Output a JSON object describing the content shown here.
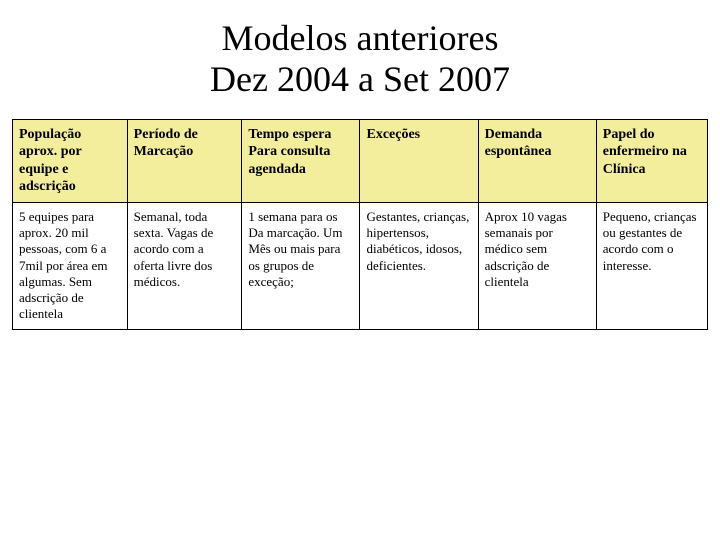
{
  "title_line1": "Modelos anteriores",
  "title_line2": "Dez 2004 a Set 2007",
  "table": {
    "header_bg": "#f2ee9c",
    "border_color": "#000000",
    "columns": [
      "População aprox. por equipe e adscrição",
      "Período de Marcação",
      "Tempo espera Para consulta agendada",
      "Exceções",
      "Demanda espontânea",
      "Papel do enfermeiro na Clínica"
    ],
    "rows": [
      [
        "5 equipes para aprox. 20 mil pessoas, com 6 a 7mil por área em algumas. Sem adscrição de clientela",
        "Semanal, toda sexta. Vagas de acordo com a oferta livre dos médicos.",
        "1 semana para os Da marcação. Um Mês ou mais para os grupos de exceção;",
        "Gestantes, crianças, hipertensos, diabéticos, idosos, deficientes.",
        "Aprox 10 vagas semanais por médico sem adscrição de clientela",
        "Pequeno, crianças ou gestantes de acordo com o interesse."
      ]
    ]
  }
}
